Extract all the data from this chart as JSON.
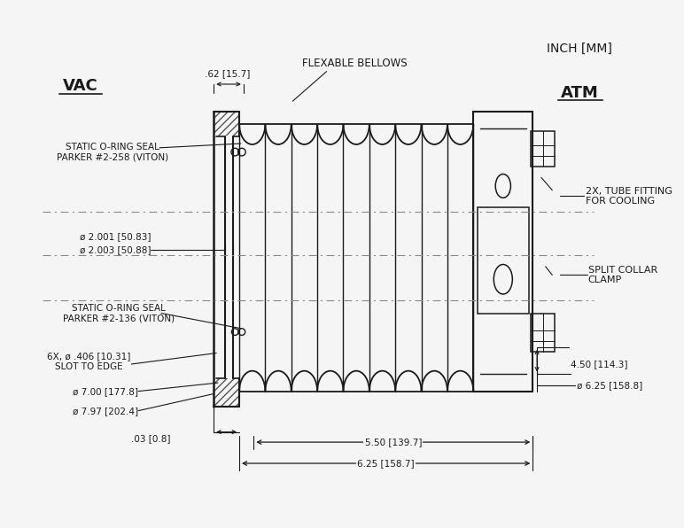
{
  "bg_color": "#f5f5f5",
  "line_color": "#1a1a1a",
  "hatch_color": "#1a1a1a",
  "dim_color": "#1a1a1a",
  "centerline_color": "#888888",
  "text_color": "#1a1a1a",
  "title": "",
  "labels": {
    "vac": "VAC",
    "atm": "ATM",
    "inch_mm": "INCH [MM]",
    "flexable_bellows": "FLEXABLE BELLOWS",
    "split_collar_clamp": "SPLIT COLLAR\nCLAMP",
    "tube_fitting": "2X, TUBE FITTING\nFOR COOLING",
    "static_oring_136": "STATIC O-RING SEAL\nPARKER #2-136 (VITON)",
    "static_oring_258": "STATIC O-RING SEAL\nPARKER #2-258 (VITON)",
    "slot_to_edge": "6X, ø .406 [10.31]\nSLOT TO EDGE",
    "dim_625": "6.25 [158.7]",
    "dim_550": "5.50 [139.7]",
    "dim_03": ".03 [0.8]",
    "dim_797": "ø 7.97 [202.4]",
    "dim_700": "ø 7.00 [177.8]",
    "dim_625r": "ø 6.25 [158.8]",
    "dim_450": "4.50 [114.3]",
    "dim_2003": "ø 2.003 [50.88]",
    "dim_2001": "ø 2.001 [50.83]",
    "dim_062": ".62 [15.7]"
  }
}
